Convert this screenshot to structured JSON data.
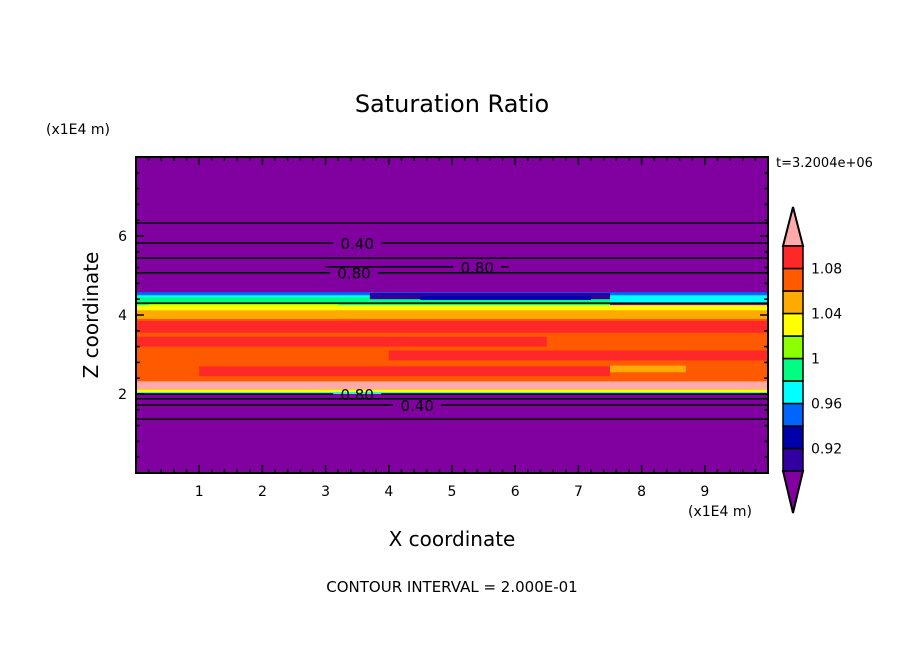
{
  "chart_data": {
    "type": "heatmap",
    "title": "Saturation Ratio",
    "xlabel": "X coordinate",
    "ylabel": "Z coordinate",
    "x_unit": "(x1E4 m)",
    "y_unit": "(x1E4 m)",
    "time_label": "t=3.2004e+06",
    "footer": "CONTOUR INTERVAL = 2.000E-01",
    "xlim": [
      0,
      10
    ],
    "ylim": [
      0,
      8
    ],
    "xticks": [
      "1",
      "2",
      "3",
      "4",
      "5",
      "6",
      "7",
      "8",
      "9"
    ],
    "yticks": [
      "2",
      "4",
      "6"
    ],
    "background_color": "#8000A0",
    "colorbar": {
      "levels": [
        0.9,
        0.92,
        0.94,
        0.96,
        0.98,
        1.0,
        1.02,
        1.04,
        1.06,
        1.08,
        1.1
      ],
      "colors": [
        "#3200A0",
        "#0000AA",
        "#0064FF",
        "#00FFFF",
        "#00FF80",
        "#8CFF00",
        "#FFFF00",
        "#FFAA00",
        "#FF5A00",
        "#FF2828"
      ],
      "under_color": "#8000A0",
      "over_color": "#FFAAAA",
      "tick_labels": [
        {
          "value": 1.08,
          "label": "1.08"
        },
        {
          "value": 1.04,
          "label": "1.04"
        },
        {
          "value": 1.0,
          "label": "1"
        },
        {
          "value": 0.96,
          "label": "0.96"
        },
        {
          "value": 0.92,
          "label": "0.92"
        }
      ]
    },
    "bands": [
      {
        "x": [
          0,
          10
        ],
        "z": [
          4.35,
          4.58
        ],
        "color": "#0064FF"
      },
      {
        "x": [
          0,
          10
        ],
        "z": [
          4.3,
          4.5
        ],
        "color": "#00FFFF"
      },
      {
        "x": [
          0,
          7.5
        ],
        "z": [
          4.25,
          4.45
        ],
        "color": "#00FF80"
      },
      {
        "x": [
          3.7,
          7.5
        ],
        "z": [
          4.4,
          4.56
        ],
        "color": "#3200A0"
      },
      {
        "x": [
          4.5,
          7.2
        ],
        "z": [
          4.38,
          4.48
        ],
        "color": "#0000AA"
      },
      {
        "x": [
          0.2,
          3.2
        ],
        "z": [
          4.1,
          4.32
        ],
        "color": "#8CFF00"
      },
      {
        "x": [
          0,
          10
        ],
        "z": [
          4.05,
          4.25
        ],
        "color": "#FFFF00"
      },
      {
        "x": [
          0,
          10
        ],
        "z": [
          3.85,
          4.12
        ],
        "color": "#FFAA00"
      },
      {
        "x": [
          0,
          10
        ],
        "z": [
          2.3,
          3.9
        ],
        "color": "#FF5A00"
      },
      {
        "x": [
          0,
          10
        ],
        "z": [
          3.55,
          3.85
        ],
        "color": "#FF2828"
      },
      {
        "x": [
          0,
          6.5
        ],
        "z": [
          3.2,
          3.45
        ],
        "color": "#FF2828"
      },
      {
        "x": [
          4.0,
          10
        ],
        "z": [
          2.85,
          3.1
        ],
        "color": "#FF2828"
      },
      {
        "x": [
          1.0,
          7.5
        ],
        "z": [
          2.45,
          2.7
        ],
        "color": "#FF2828"
      },
      {
        "x": [
          7.5,
          8.7
        ],
        "z": [
          2.55,
          2.72
        ],
        "color": "#FFAA00"
      },
      {
        "x": [
          0,
          10
        ],
        "z": [
          2.12,
          2.32
        ],
        "color": "#FFAAAA"
      },
      {
        "x": [
          0,
          10
        ],
        "z": [
          2.04,
          2.12
        ],
        "color": "#FFFF00"
      },
      {
        "x": [
          0,
          10
        ],
        "z": [
          2.0,
          2.04
        ],
        "color": "#00FFFF"
      }
    ],
    "contours": [
      {
        "level": 0.2,
        "z": 6.33
      },
      {
        "level": 0.4,
        "z": 5.82,
        "label": "0.40",
        "label_x": 3.5
      },
      {
        "level": 0.6,
        "z": 5.44
      },
      {
        "level": 0.8,
        "z": 5.07,
        "label": "0.80",
        "label_x": 3.45
      },
      {
        "level": 0.8,
        "z": 5.22,
        "x": [
          3.0,
          5.9
        ],
        "label": "0.80",
        "label_x": 5.4
      },
      {
        "level": 1.0,
        "z": 4.3
      },
      {
        "level": 0.8,
        "z": 2.0,
        "label": "0.80",
        "label_x": 3.5
      },
      {
        "level": 0.6,
        "z": 1.88
      },
      {
        "level": 0.4,
        "z": 1.72,
        "label": "0.40",
        "label_x": 3.5
      },
      {
        "level": 0.2,
        "z": 1.36
      }
    ]
  }
}
